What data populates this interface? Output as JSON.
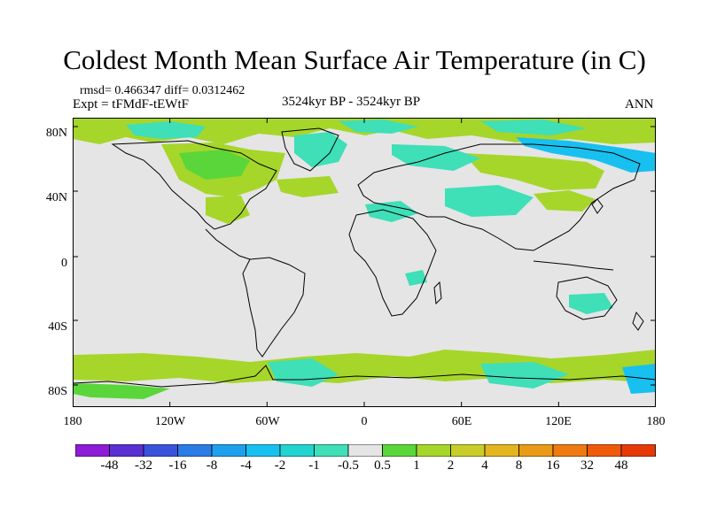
{
  "title": "Coldest Month Mean Surface Air Temperature (in C)",
  "stats": "rmsd= 0.466347 diff= 0.0312462",
  "expt": "Expt = tFMdF-tEWtF",
  "period": "3524kyr BP - 3524kyr BP",
  "season": "ANN",
  "lat_labels": [
    "80N",
    "40N",
    "0",
    "40S",
    "80S"
  ],
  "lon_labels": [
    "180",
    "120W",
    "60W",
    "0",
    "60E",
    "120E",
    "180"
  ],
  "colorbar": {
    "labels": [
      "-48",
      "-32",
      "-16",
      "-8",
      "-4",
      "-2",
      "-1",
      "-0.5",
      "0.5",
      "1",
      "2",
      "4",
      "8",
      "16",
      "32",
      "48"
    ],
    "colors": [
      "#8d1cd6",
      "#5a30d2",
      "#3a52da",
      "#2a7ce6",
      "#1fa0ee",
      "#18c0f0",
      "#22d3d0",
      "#3fdfb8",
      "#e5e5e5",
      "#5ad63a",
      "#a6d62a",
      "#c8cd2a",
      "#e3b51e",
      "#ea9a16",
      "#ee7a10",
      "#ee5a0a",
      "#e63a06"
    ]
  },
  "map_colors": {
    "background": "#e5e5e5",
    "green": "#a6d62a",
    "bright_green": "#5ad63a",
    "cyan": "#3fdfb8",
    "blue": "#18c0f0"
  }
}
